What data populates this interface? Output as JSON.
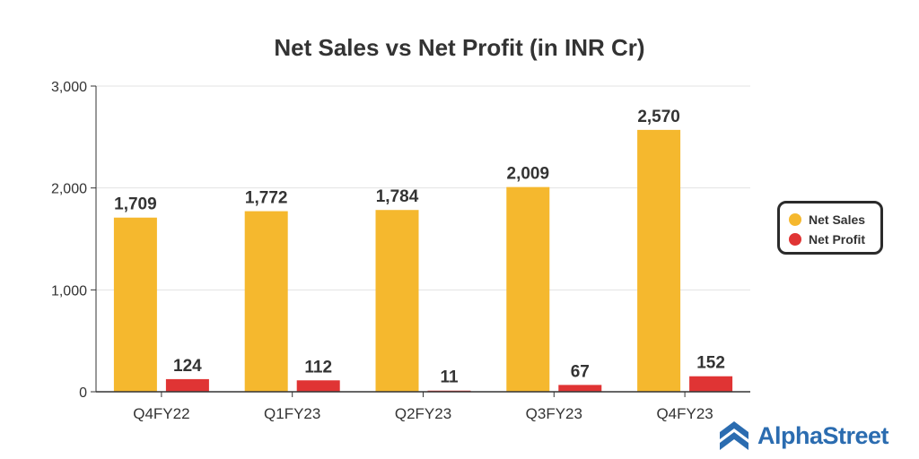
{
  "chart_data": {
    "type": "bar",
    "title": "Net Sales vs Net Profit (in INR Cr)",
    "categories": [
      "Q4FY22",
      "Q1FY23",
      "Q2FY23",
      "Q3FY23",
      "Q4FY23"
    ],
    "series": [
      {
        "name": "Net Sales",
        "color": "#f5b82e",
        "values": [
          1709,
          1772,
          1784,
          2009,
          2570
        ],
        "labels": [
          "1,709",
          "1,772",
          "1,784",
          "2,009",
          "2,570"
        ]
      },
      {
        "name": "Net Profit",
        "color": "#e03434",
        "values": [
          124,
          112,
          11,
          67,
          152
        ],
        "labels": [
          "124",
          "112",
          "11",
          "67",
          "152"
        ]
      }
    ],
    "yticks": [
      "0",
      "1,000",
      "2,000",
      "3,000"
    ],
    "ytick_values": [
      0,
      1000,
      2000,
      3000
    ],
    "ylim": [
      0,
      3000
    ],
    "xlabel": "",
    "ylabel": "",
    "grid": true,
    "legend": "right"
  },
  "brand": {
    "name": "AlphaStreet",
    "color": "#2b6cb0",
    "icon": "alphastreet-logo-icon"
  }
}
